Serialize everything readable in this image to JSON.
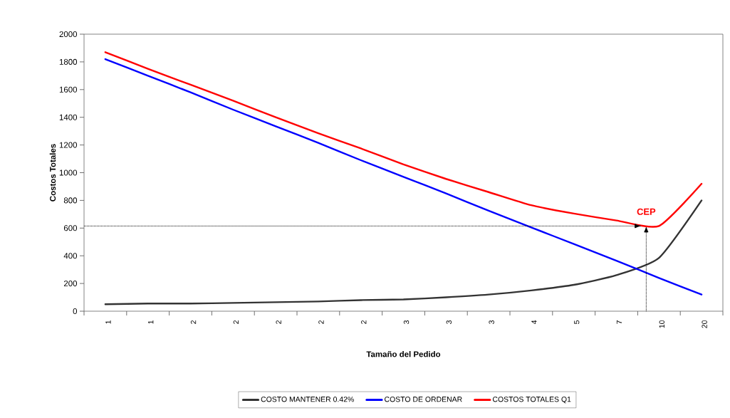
{
  "chart_data": {
    "type": "line",
    "xlabel": "Tamaño del Pedido",
    "ylabel": "Costos Totales",
    "categories": [
      "1",
      "1",
      "2",
      "2",
      "2",
      "2",
      "2",
      "3",
      "3",
      "3",
      "4",
      "5",
      "7",
      "10",
      "20"
    ],
    "series": [
      {
        "name": "COSTO MANTENER 0.42%",
        "color": "#333333",
        "values": [
          50,
          55,
          55,
          60,
          65,
          70,
          80,
          85,
          100,
          120,
          150,
          190,
          260,
          385,
          800
        ]
      },
      {
        "name": "COSTO DE ORDENAR",
        "color": "#0000ff",
        "values": [
          1820,
          1700,
          1580,
          1455,
          1335,
          1215,
          1090,
          970,
          850,
          725,
          605,
          485,
          365,
          240,
          120
        ]
      },
      {
        "name": "COSTOS TOTALES Q1",
        "color": "#ff0000",
        "values": [
          1870,
          1750,
          1635,
          1520,
          1400,
          1285,
          1175,
          1060,
          955,
          860,
          765,
          705,
          655,
          615,
          920
        ]
      }
    ],
    "ylim": [
      0,
      2000
    ],
    "yticks": [
      0,
      200,
      400,
      600,
      800,
      1000,
      1200,
      1400,
      1600,
      1800,
      2000
    ],
    "annotations": [
      {
        "text": "CEP",
        "y": 615
      }
    ],
    "ref_lines": [
      {
        "axis": "y",
        "value": 615,
        "line_style": "dotted"
      }
    ],
    "legend": "bottom"
  }
}
